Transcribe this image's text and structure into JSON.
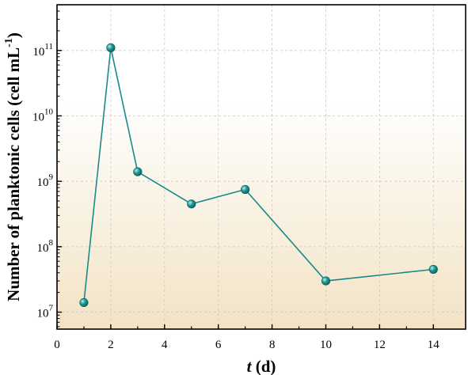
{
  "chart_data": {
    "type": "line",
    "title": "",
    "xlabel": {
      "var": "t",
      "unit": " (d)"
    },
    "ylabel": {
      "text": "Number of planktonic cells (cell mL",
      "sup": "-1",
      "close": ")"
    },
    "x": [
      1,
      2,
      3,
      5,
      7,
      10,
      14
    ],
    "series": [
      {
        "values": [
          14000000,
          110000000000,
          1400000000,
          450000000,
          750000000,
          30000000,
          45000000
        ],
        "color": "#1a8a8a"
      }
    ],
    "xlim": [
      0,
      15.2
    ],
    "ylim": [
      5500000,
      500000000000
    ],
    "y_scale": "log",
    "x_ticks": [
      0,
      2,
      4,
      6,
      8,
      10,
      12,
      14
    ],
    "y_ticks": [
      {
        "value": 10000000,
        "base": "10",
        "exp": "7"
      },
      {
        "value": 100000000,
        "base": "10",
        "exp": "8"
      },
      {
        "value": 1000000000,
        "base": "10",
        "exp": "9"
      },
      {
        "value": 10000000000,
        "base": "10",
        "exp": "10"
      },
      {
        "value": 100000000000,
        "base": "10",
        "exp": "11"
      }
    ],
    "grid": true,
    "background_gradient": [
      "#ffffff",
      "#f3e3c4"
    ]
  }
}
